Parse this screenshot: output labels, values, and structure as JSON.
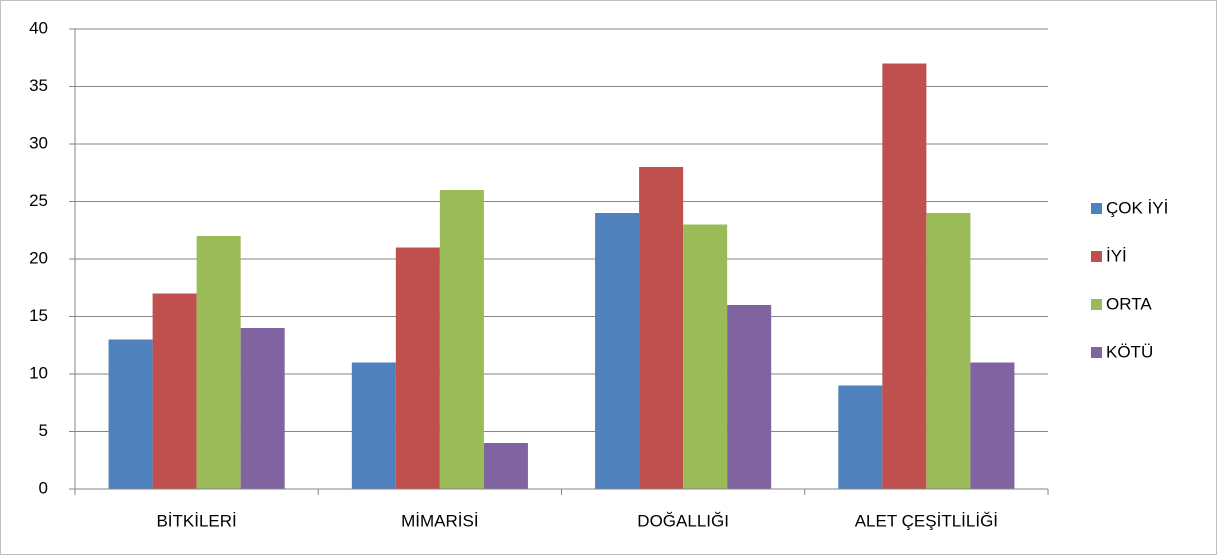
{
  "chart_data": {
    "type": "bar",
    "categories": [
      "BİTKİLERİ",
      "MİMARİSİ",
      "DOĞALLIĞI",
      "ALET ÇEŞİTLİLİĞİ"
    ],
    "series": [
      {
        "name": "ÇOK İYİ",
        "color": "#4f81bd",
        "values": [
          13,
          11,
          24,
          9
        ]
      },
      {
        "name": "İYİ",
        "color": "#c0504d",
        "values": [
          17,
          21,
          28,
          37
        ]
      },
      {
        "name": "ORTA",
        "color": "#9bbb59",
        "values": [
          22,
          26,
          23,
          24
        ]
      },
      {
        "name": "KÖTÜ",
        "color": "#8064a2",
        "values": [
          14,
          4,
          16,
          11
        ]
      }
    ],
    "ylim": [
      0,
      40
    ],
    "yticks": [
      0,
      5,
      10,
      15,
      20,
      25,
      30,
      35,
      40
    ],
    "grid": true,
    "legend": "right"
  }
}
